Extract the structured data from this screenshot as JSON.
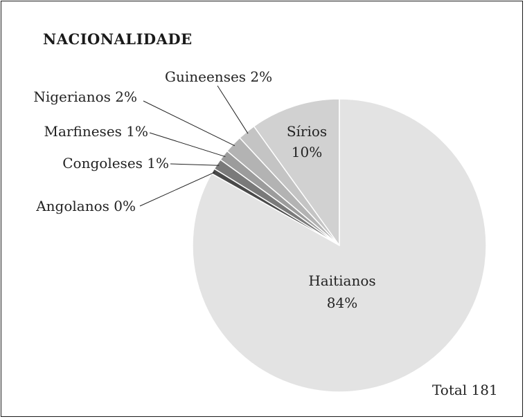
{
  "chart_data": {
    "type": "pie",
    "title": "NACIONALIDADE",
    "total_label": "Total 181",
    "slices": [
      {
        "name": "Haitianos",
        "value": 84,
        "label": "84%",
        "color": "#e3e3e3"
      },
      {
        "name": "Angolanos",
        "value": 0,
        "label": "0%",
        "color": "#4a4a4a"
      },
      {
        "name": "Congoleses",
        "value": 1,
        "label": "1%",
        "color": "#7a7a7a"
      },
      {
        "name": "Marfineses",
        "value": 1,
        "label": "1%",
        "color": "#9c9c9c"
      },
      {
        "name": "Nigerianos",
        "value": 2,
        "label": "2%",
        "color": "#b3b3b3"
      },
      {
        "name": "Guineenses",
        "value": 2,
        "label": "2%",
        "color": "#c4c4c4"
      },
      {
        "name": "Sírios",
        "value": 10,
        "label": "10%",
        "color": "#d1d1d1"
      }
    ]
  }
}
